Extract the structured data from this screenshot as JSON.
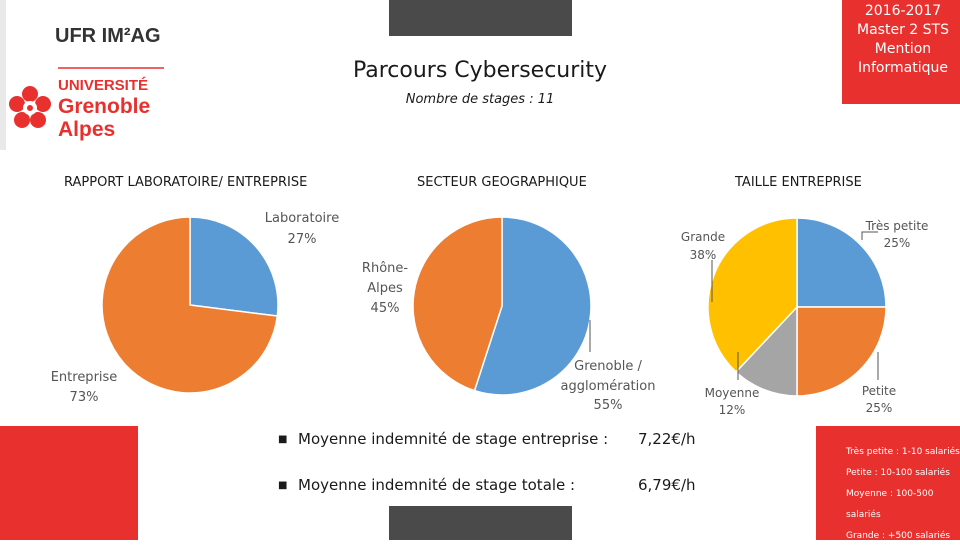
{
  "header": {
    "logo": {
      "name": "ufr-imag-logo",
      "line1": "UFR IM²AG",
      "line2": "UNIVERSITÉ",
      "line3": "Grenoble",
      "line4": "Alpes",
      "color": "#e8312e"
    },
    "year_block": [
      "2016-2017",
      "Master 2 STS",
      "Mention",
      "Informatique"
    ],
    "title": "Parcours Cybersecurity",
    "subtitle": "Nombre de stages : 11"
  },
  "colors": {
    "red": "#e8312e",
    "blue": "#5b9bd5",
    "orange": "#ed7d31",
    "gray": "#a5a5a5",
    "yellow": "#ffc000",
    "dark_gray": "#4a4a4a"
  },
  "chart_data": [
    {
      "type": "pie",
      "title": "RAPPORT LABORATOIRE/ ENTREPRISE",
      "slices": [
        {
          "label": "Laboratoire",
          "pct_label": "27%",
          "value": 27,
          "color": "#5b9bd5"
        },
        {
          "label": "Entreprise",
          "pct_label": "73%",
          "value": 73,
          "color": "#ed7d31"
        }
      ]
    },
    {
      "type": "pie",
      "title": "SECTEUR GEOGRAPHIQUE",
      "slices": [
        {
          "label": "Grenoble / agglomération",
          "pct_label": "55%",
          "value": 55,
          "color": "#5b9bd5"
        },
        {
          "label": "Rhône-Alpes",
          "pct_label": "45%",
          "value": 45,
          "color": "#ed7d31"
        }
      ]
    },
    {
      "type": "pie",
      "title": "TAILLE ENTREPRISE",
      "slices": [
        {
          "label": "Très petite",
          "pct_label": "25%",
          "value": 25,
          "color": "#5b9bd5"
        },
        {
          "label": "Petite",
          "pct_label": "25%",
          "value": 25,
          "color": "#ed7d31"
        },
        {
          "label": "Moyenne",
          "pct_label": "12%",
          "value": 12,
          "color": "#a5a5a5"
        },
        {
          "label": "Grande",
          "pct_label": "38%",
          "value": 38,
          "color": "#ffc000"
        }
      ]
    }
  ],
  "stats": [
    {
      "label": "Moyenne indemnité de stage entreprise :",
      "value": "7,22€/h"
    },
    {
      "label": "Moyenne indemnité de stage totale :",
      "value": "6,79€/h"
    }
  ],
  "legend": [
    "Très petite : 1-10 salariés",
    "Petite : 10-100 salariés",
    "Moyenne : 100-500",
    "salariés",
    "Grande : +500 salariés"
  ]
}
